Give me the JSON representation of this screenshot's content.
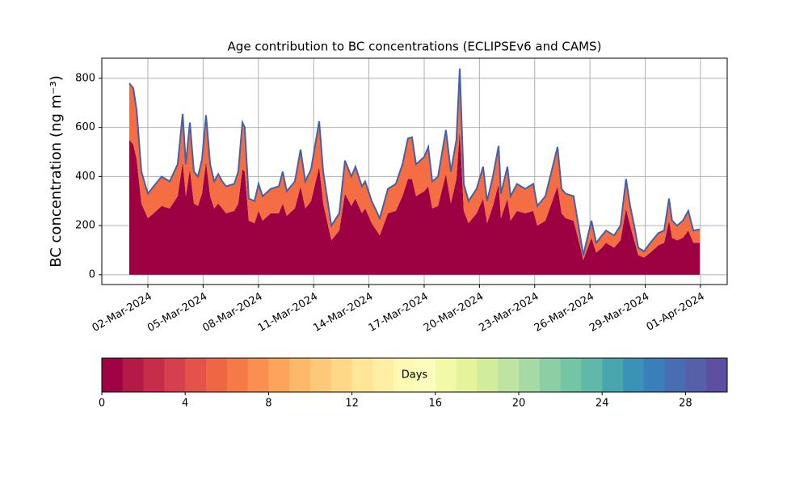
{
  "chart_data": {
    "type": "stacked_area",
    "title": "Age contribution to BC concentrations (ECLIPSEv6 and CAMS)",
    "y_label": "BC concentration (ng m⁻³)",
    "x": [
      0.99,
      1.21,
      1.39,
      1.65,
      2.0,
      2.31,
      2.75,
      3.18,
      3.62,
      3.89,
      4.06,
      4.28,
      4.5,
      4.72,
      4.94,
      5.16,
      5.38,
      5.6,
      5.82,
      6.04,
      6.25,
      6.69,
      6.91,
      7.13,
      7.26,
      7.48,
      7.79,
      8.01,
      8.23,
      8.67,
      9.11,
      9.32,
      9.54,
      9.98,
      10.29,
      10.55,
      10.86,
      11.3,
      11.52,
      11.96,
      12.39,
      12.7,
      13.05,
      13.27,
      13.62,
      13.8,
      14.15,
      14.59,
      15.03,
      15.46,
      15.82,
      16.12,
      16.34,
      16.56,
      17.0,
      17.22,
      17.44,
      17.75,
      18.18,
      18.45,
      18.75,
      18.93,
      19.15,
      19.41,
      19.85,
      20.2,
      20.42,
      20.73,
      21.04,
      21.17,
      21.52,
      21.69,
      22.04,
      22.48,
      22.92,
      23.14,
      23.58,
      24.24,
      24.46,
      24.68,
      25.11,
      25.42,
      25.64,
      26.08,
      26.34,
      26.65,
      26.87,
      27.31,
      27.66,
      27.96,
      28.18,
      28.4,
      28.62,
      28.93,
      29.28,
      29.72,
      30.03,
      30.29,
      30.46,
      30.73,
      31.04,
      31.34,
      31.61,
      31.96
    ],
    "series": [
      {
        "color": "#9e0142",
        "values": [
          550,
          530,
          470,
          290,
          230,
          250,
          280,
          270,
          320,
          460,
          320,
          430,
          290,
          280,
          330,
          460,
          320,
          270,
          290,
          270,
          250,
          260,
          290,
          430,
          420,
          220,
          210,
          260,
          220,
          250,
          250,
          290,
          240,
          270,
          360,
          270,
          300,
          440,
          290,
          140,
          180,
          330,
          280,
          310,
          250,
          270,
          210,
          160,
          250,
          260,
          320,
          390,
          390,
          320,
          340,
          360,
          270,
          280,
          410,
          290,
          390,
          590,
          260,
          210,
          250,
          310,
          210,
          280,
          370,
          230,
          310,
          220,
          260,
          250,
          260,
          200,
          220,
          360,
          250,
          230,
          220,
          130,
          60,
          150,
          90,
          110,
          130,
          110,
          140,
          270,
          200,
          140,
          80,
          70,
          90,
          120,
          130,
          220,
          150,
          140,
          150,
          180,
          130,
          130
        ]
      },
      {
        "color": "#f46d43",
        "values": [
          230,
          230,
          200,
          130,
          100,
          110,
          120,
          110,
          130,
          195,
          130,
          190,
          130,
          120,
          140,
          190,
          130,
          110,
          120,
          110,
          110,
          110,
          130,
          190,
          180,
          90,
          90,
          110,
          100,
          100,
          110,
          130,
          100,
          110,
          150,
          110,
          130,
          185,
          130,
          60,
          70,
          135,
          120,
          130,
          110,
          110,
          90,
          70,
          100,
          110,
          130,
          165,
          170,
          130,
          140,
          160,
          110,
          120,
          180,
          130,
          160,
          250,
          110,
          90,
          100,
          130,
          90,
          120,
          155,
          100,
          130,
          100,
          110,
          100,
          110,
          80,
          100,
          160,
          100,
          100,
          100,
          50,
          20,
          70,
          40,
          50,
          50,
          50,
          60,
          120,
          80,
          60,
          30,
          25,
          40,
          50,
          50,
          90,
          70,
          60,
          70,
          80,
          50,
          55
        ]
      }
    ],
    "outline_color": "#4461a8",
    "xlim": [
      -0.5,
      33.45
    ],
    "xticks": [
      {
        "value": 2,
        "label": "02-Mar-2024"
      },
      {
        "value": 5,
        "label": "05-Mar-2024"
      },
      {
        "value": 8,
        "label": "08-Mar-2024"
      },
      {
        "value": 11,
        "label": "11-Mar-2024"
      },
      {
        "value": 14,
        "label": "14-Mar-2024"
      },
      {
        "value": 17,
        "label": "17-Mar-2024"
      },
      {
        "value": 20,
        "label": "20-Mar-2024"
      },
      {
        "value": 23,
        "label": "23-Mar-2024"
      },
      {
        "value": 26,
        "label": "26-Mar-2024"
      },
      {
        "value": 29,
        "label": "29-Mar-2024"
      },
      {
        "value": 32,
        "label": "01-Apr-2024"
      }
    ],
    "ylim": [
      -40,
      882
    ],
    "yticks": [
      0,
      200,
      400,
      600,
      800
    ],
    "grid": true,
    "colorbar": {
      "label": "Days",
      "lim": [
        0,
        30
      ],
      "ticks": [
        0,
        4,
        8,
        12,
        16,
        20,
        24,
        28
      ],
      "colors": [
        "#a00343",
        "#b41a47",
        "#c72d4b",
        "#d6404e",
        "#e4534b",
        "#ef6645",
        "#f57a48",
        "#f98f51",
        "#fca45c",
        "#fdb96a",
        "#fdc979",
        "#fed887",
        "#fee597",
        "#feefa5",
        "#fff8b3",
        "#fcfdbc",
        "#f2f9a9",
        "#e5f49a",
        "#d1ec9d",
        "#bde4a1",
        "#a5daa4",
        "#8ccfa4",
        "#73c5a5",
        "#5fb8a8",
        "#4aa6ae",
        "#3a93b7",
        "#3a80b8",
        "#486db1",
        "#5560a9",
        "#5e4fa2"
      ]
    }
  }
}
